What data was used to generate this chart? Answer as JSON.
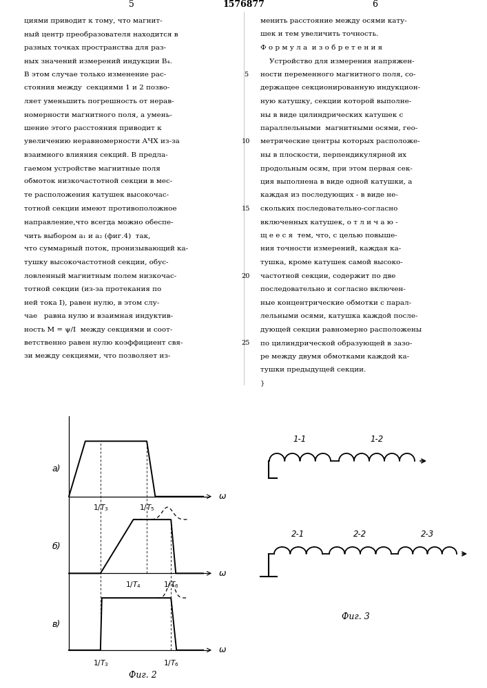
{
  "page_title": "1576877",
  "page_left_num": "5",
  "page_right_num": "6",
  "left_column_text": [
    "циями приводит к тому, что магнит-",
    "ный центр преобразователя находится в",
    "разных точках пространства для раз-",
    "ных значений измерений индукции B₄.",
    "В этом случае только изменение рас-",
    "стояния между  секциями 1 и 2 позво-",
    "ляет уменьшить погрешность от нерав-",
    "номерности магнитного поля, а умень-",
    "шение этого расстояния приводит к",
    "увеличению неравномерности АЧХ из-за",
    "взаимного влияния секций. В предла-",
    "гаемом устройстве магнитные поля",
    "обмоток низкочастотной секции в мес-",
    "те расположения катушек высокочас-",
    "тотной секции имеют противоположное",
    "направление,что всегда можно обеспе-",
    "чить выбором a₁ и a₂ (фиг.4)  так,",
    "что суммарный поток, пронизывающий ка-",
    "тушку высокочастотной секции, обус-",
    "ловленный магнитным полем низкочас-",
    "тотной секции (из-за протекания по",
    "ней тока I), равен нулю, в этом слу-",
    "чае   равна нулю и взаимная индуктив-",
    "ность M = ψ/I  между секциями и соот-",
    "ветственно равен нулю коэффициент свя-",
    "зи между секциями, что позволяет из-"
  ],
  "right_column_text": [
    "менить расстояние между осями кату-",
    "шек и тем увеличить точность.",
    "Ф о р м у л а  и з о б р е т е н и я",
    "    Устройство для измерения напряжен-",
    "ности переменного магнитного поля, со-",
    "держащее секционированную индукцион-",
    "ную катушку, секции которой выполне-",
    "ны в виде цилиндрических катушек с",
    "параллельными  магнитными осями, гео-",
    "метрические центры которых расположе-",
    "ны в плоскости, перпендикулярной их",
    "продольным осям, при этом первая сек-",
    "ция выполнена в виде одной катушки, а",
    "каждая из последующих - в виде не-",
    "скольких последовательно-согласно",
    "включенных катушек, о т л и ч а ю -",
    "щ е е с я  тем, что, с целью повыше-",
    "ния точности измерений, каждая ка-",
    "тушка, кроме катушек самой высоко-",
    "частотной секции, содержит по две",
    "последовательно и согласно включен-",
    "ные концентрические обмотки с парал-",
    "лельными осями, катушка каждой после-",
    "дующей секции равномерно расположены",
    "по цилиндрической образующей в зазо-",
    "ре между двумя обмотками каждой ка-",
    "тушки предыдущей секции.",
    "}"
  ]
}
